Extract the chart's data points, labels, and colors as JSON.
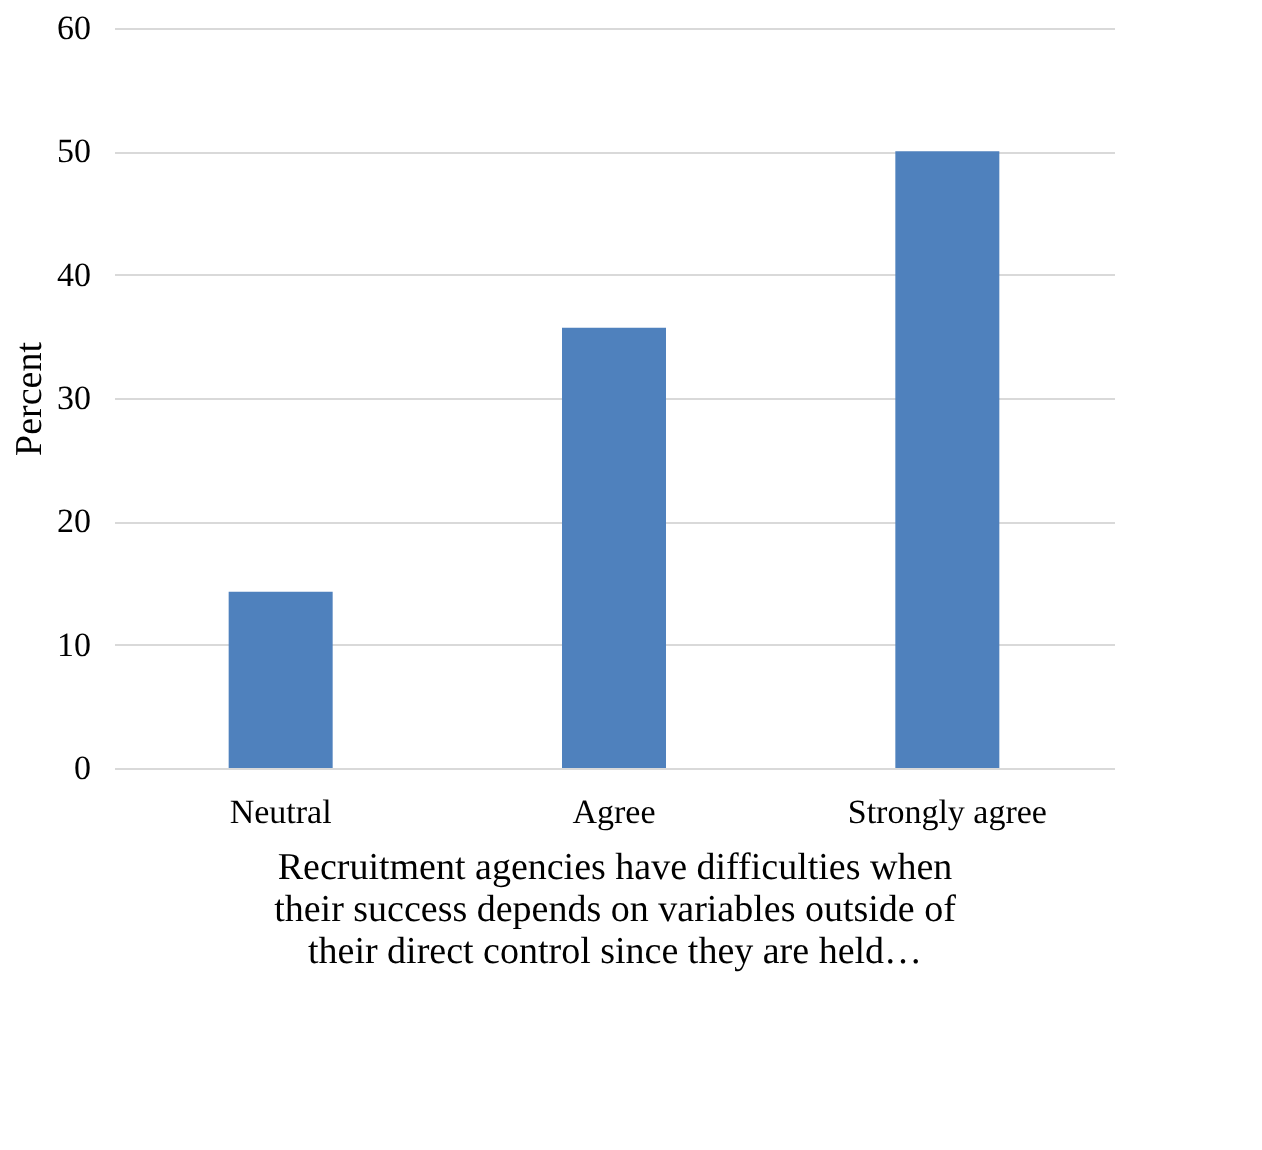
{
  "chart_data": {
    "type": "bar",
    "categories": [
      "Neutral",
      "Agree",
      "Strongly agree"
    ],
    "values": [
      14.3,
      35.7,
      50.0
    ],
    "color": "#4f81bd",
    "xlabel": "Recruitment agencies have difficulties when their success depends on variables outside of their direct control since they are held…",
    "ylabel": "Percent",
    "ylim": [
      0,
      60
    ],
    "yticks": [
      0,
      10,
      20,
      30,
      40,
      50,
      60
    ],
    "grid": "y"
  }
}
